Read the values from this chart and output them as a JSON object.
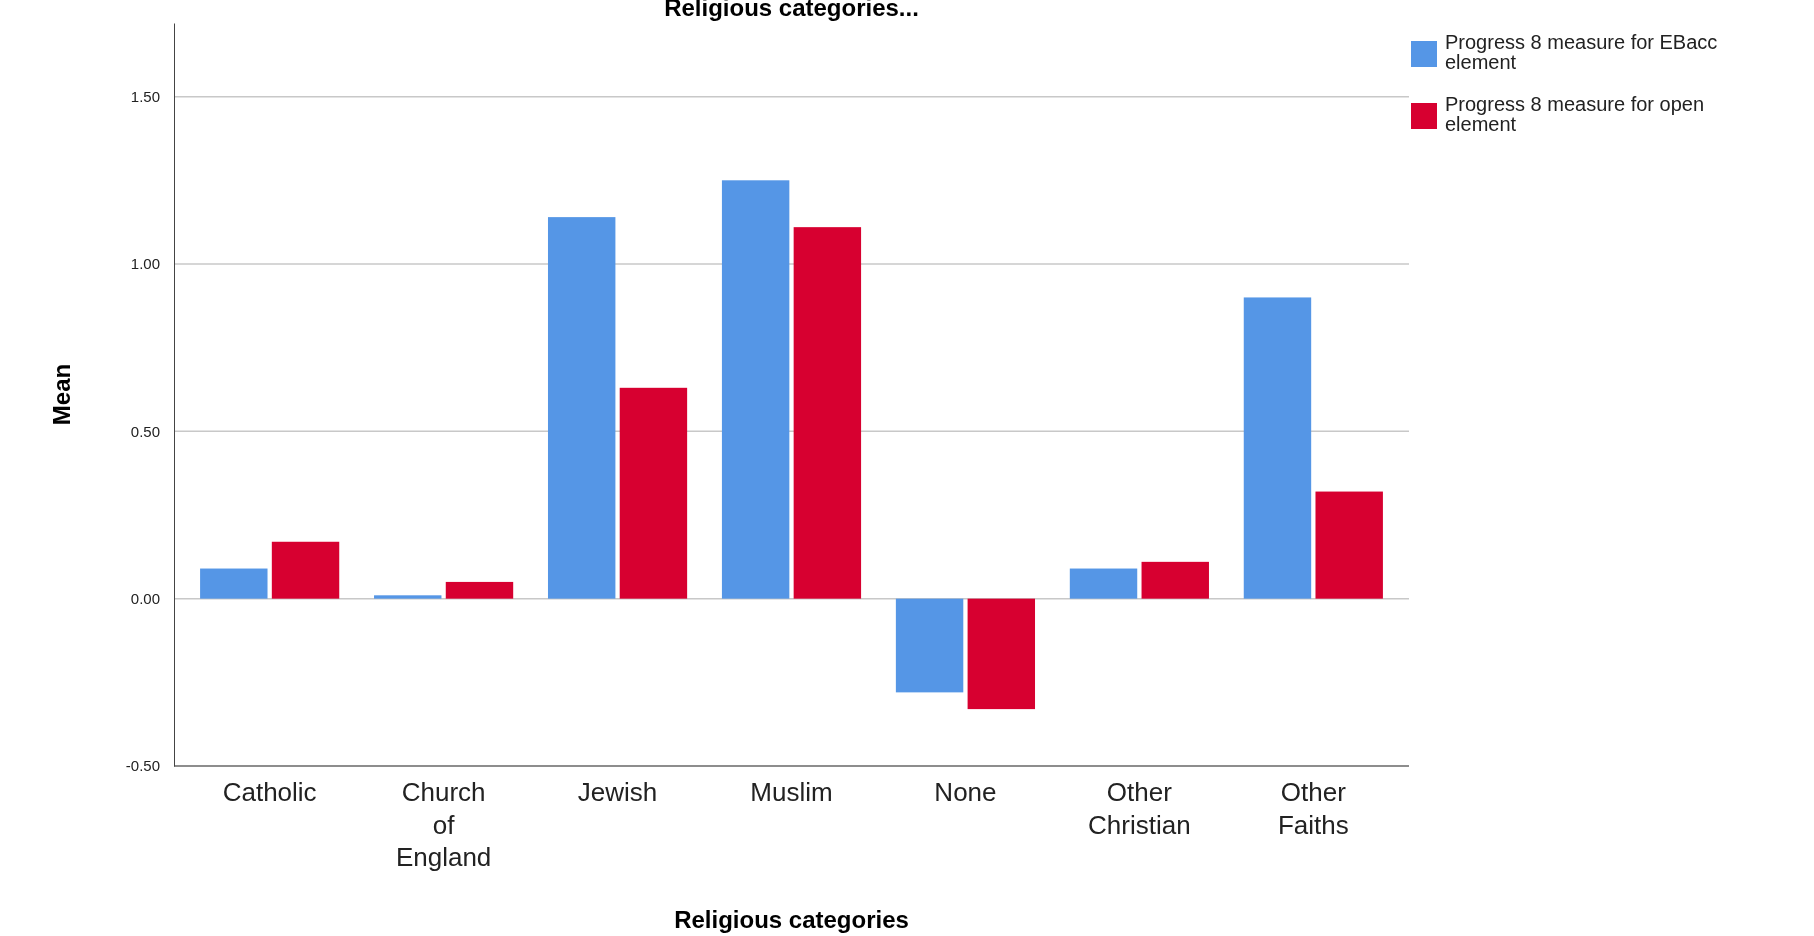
{
  "chart_data": {
    "type": "bar",
    "title": "Religious categories...",
    "xlabel": "Religious categories",
    "ylabel": "Mean",
    "categories": [
      "Catholic",
      "Church of England",
      "Jewish",
      "Muslim",
      "None",
      "Other Christian",
      "Other Faiths"
    ],
    "series": [
      {
        "name": "Progress 8 measure for EBacc element",
        "color": "#5596e6",
        "values": [
          0.09,
          0.01,
          1.14,
          1.25,
          -0.28,
          0.09,
          0.9
        ]
      },
      {
        "name": "Progress 8 measure for open element",
        "color": "#d70030",
        "values": [
          0.17,
          0.05,
          0.63,
          1.11,
          -0.33,
          0.11,
          0.32
        ]
      }
    ],
    "ylim": [
      -0.5,
      1.72
    ],
    "yticks": [
      {
        "value": -0.5,
        "label": "-0.50"
      },
      {
        "value": 0,
        "label": "0.00"
      },
      {
        "value": 0.5,
        "label": "0.50"
      },
      {
        "value": 1,
        "label": "1.00"
      },
      {
        "value": 1.5,
        "label": "1.50"
      }
    ],
    "grid": "y",
    "legend": "top right"
  }
}
